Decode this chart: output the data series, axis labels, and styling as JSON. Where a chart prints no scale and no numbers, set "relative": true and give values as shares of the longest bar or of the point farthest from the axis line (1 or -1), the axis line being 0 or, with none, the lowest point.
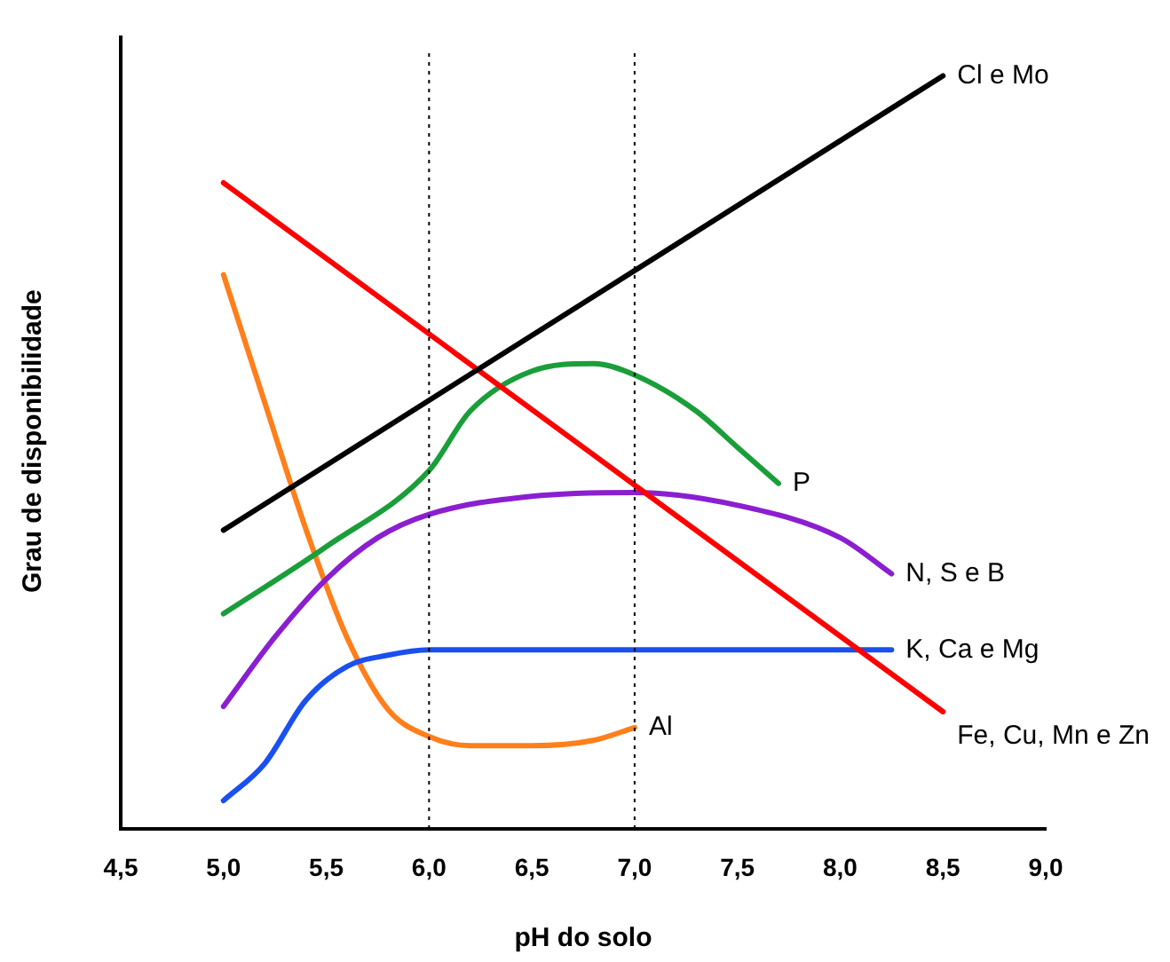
{
  "chart_data": {
    "type": "line",
    "xlabel": "pH do solo",
    "ylabel": "Grau de disponibilidade",
    "relative": true,
    "grid": false,
    "legend": false,
    "marker": "none",
    "line_style": "solid",
    "xlim": [
      4.5,
      9.0
    ],
    "xticks": [
      {
        "value": 4.5,
        "label": "4,5"
      },
      {
        "value": 5.0,
        "label": "5,0"
      },
      {
        "value": 5.5,
        "label": "5,5"
      },
      {
        "value": 6.0,
        "label": "6,0"
      },
      {
        "value": 6.5,
        "label": "6,5"
      },
      {
        "value": 7.0,
        "label": "7,0"
      },
      {
        "value": 7.5,
        "label": "7,5"
      },
      {
        "value": 8.0,
        "label": "8,0"
      },
      {
        "value": 8.5,
        "label": "8,5"
      },
      {
        "value": 9.0,
        "label": "9,0"
      }
    ],
    "series": [
      {
        "name": "Cl e Mo",
        "color": "#000000",
        "x": [
          5.0,
          8.5
        ],
        "values": [
          0.397,
          1
        ]
      },
      {
        "name": "Fe, Cu, Mn e Zn",
        "color": "#ff0000",
        "x": [
          5.0,
          8.5
        ],
        "values": [
          0.858,
          0.156
        ]
      },
      {
        "name": "P",
        "color": "#1a9e3a",
        "x": [
          5.0,
          5.5,
          6.0,
          6.2,
          6.5,
          6.8,
          7.0,
          7.3,
          7.5,
          7.7
        ],
        "values": [
          0.286,
          0.375,
          0.476,
          0.555,
          0.608,
          0.618,
          0.603,
          0.555,
          0.507,
          0.459
        ]
      },
      {
        "name": "N, S e B",
        "color": "#8a1fd0",
        "x": [
          5.0,
          5.25,
          5.5,
          5.75,
          6.0,
          6.5,
          7.0,
          7.5,
          8.0,
          8.25
        ],
        "values": [
          0.163,
          0.255,
          0.332,
          0.387,
          0.418,
          0.442,
          0.447,
          0.43,
          0.387,
          0.339
        ]
      },
      {
        "name": "K, Ca e Mg",
        "color": "#1a4ff0",
        "x": [
          5.0,
          5.2,
          5.4,
          5.6,
          5.8,
          6.0,
          7.0,
          8.25
        ],
        "values": [
          0.038,
          0.087,
          0.171,
          0.216,
          0.231,
          0.238,
          0.238,
          0.238
        ]
      },
      {
        "name": "Al",
        "color": "#ff7f1a",
        "x": [
          5.0,
          5.2,
          5.4,
          5.6,
          5.8,
          6.0,
          6.2,
          6.5,
          6.8,
          7.0
        ],
        "values": [
          0.736,
          0.567,
          0.399,
          0.255,
          0.159,
          0.123,
          0.111,
          0.111,
          0.118,
          0.135
        ]
      }
    ],
    "ref_lines": [
      {
        "axis": "x",
        "value": 6.0,
        "color": "#000000",
        "line_style": "dotted"
      },
      {
        "axis": "x",
        "value": 7.0,
        "color": "#000000",
        "line_style": "dotted"
      }
    ]
  }
}
